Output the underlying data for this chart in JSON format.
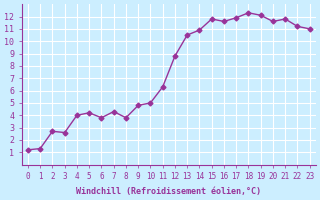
{
  "x_vals": [
    0,
    1,
    2,
    3,
    4,
    5,
    6,
    7,
    8,
    9,
    10,
    11,
    12,
    13,
    14,
    15,
    16,
    17,
    18,
    19,
    20,
    21,
    22,
    23
  ],
  "y_vals": [
    1.2,
    1.3,
    2.7,
    2.6,
    4.0,
    4.2,
    3.8,
    4.3,
    3.8,
    4.8,
    5.0,
    6.3,
    8.8,
    10.5,
    10.9,
    11.8,
    11.6,
    11.9,
    12.3,
    12.1,
    11.6,
    11.8,
    11.2,
    11.0
  ],
  "xlabel": "Windchill (Refroidissement éolien,°C)",
  "line_color": "#993399",
  "marker_color": "#993399",
  "bg_color": "#cceeff",
  "grid_color": "#ffffff",
  "xlim": [
    -0.5,
    23.5
  ],
  "ylim": [
    0,
    13
  ],
  "yticks": [
    1,
    2,
    3,
    4,
    5,
    6,
    7,
    8,
    9,
    10,
    11,
    12
  ],
  "xticks": [
    0,
    1,
    2,
    3,
    4,
    5,
    6,
    7,
    8,
    9,
    10,
    11,
    12,
    13,
    14,
    15,
    16,
    17,
    18,
    19,
    20,
    21,
    22,
    23
  ]
}
